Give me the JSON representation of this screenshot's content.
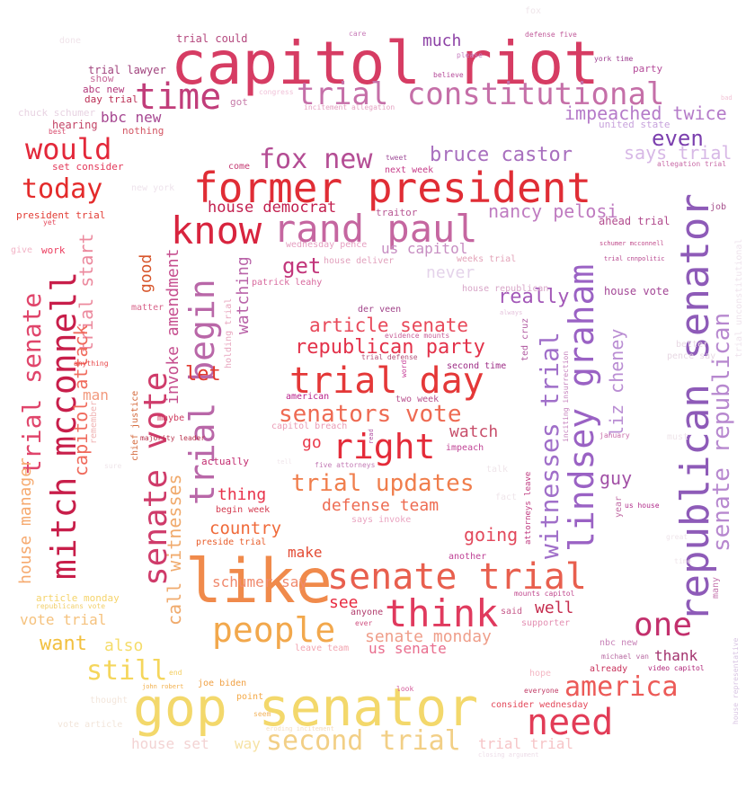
{
  "words": [
    {
      "text": "capitol riot",
      "color": "#d63c63"
    },
    {
      "text": "gop senator",
      "color": "#f3d86b"
    },
    {
      "text": "like",
      "color": "#f08a4b"
    },
    {
      "text": "former president",
      "color": "#e02d35"
    },
    {
      "text": "trial constitutional",
      "color": "#c56fa8"
    },
    {
      "text": "republican senator",
      "color": "#8e5bb8"
    },
    {
      "text": "mitch mcconnell",
      "color": "#c81e4a"
    },
    {
      "text": "senate trial",
      "color": "#e85f4e"
    },
    {
      "text": "rand paul",
      "color": "#c566a0"
    },
    {
      "text": "lindsey graham",
      "color": "#9a62c4"
    },
    {
      "text": "senate vote",
      "color": "#cf3b6a"
    },
    {
      "text": "trial begin",
      "color": "#b967a8"
    },
    {
      "text": "trial day",
      "color": "#e43838"
    },
    {
      "text": "know",
      "color": "#d8243e"
    },
    {
      "text": "time",
      "color": "#c13d7a"
    },
    {
      "text": "think",
      "color": "#e03a5e"
    },
    {
      "text": "people",
      "color": "#f2a84c"
    },
    {
      "text": "need",
      "color": "#e23c57"
    },
    {
      "text": "right",
      "color": "#e42b39"
    },
    {
      "text": "second trial",
      "color": "#f2cf86"
    },
    {
      "text": "would",
      "color": "#e3283a"
    },
    {
      "text": "today",
      "color": "#e42b2b"
    },
    {
      "text": "one",
      "color": "#c3306d"
    },
    {
      "text": "fox new",
      "color": "#b44d94"
    },
    {
      "text": "senate republican",
      "color": "#b788cf"
    },
    {
      "text": "senators vote",
      "color": "#ee6a52"
    },
    {
      "text": "witnesses trial",
      "color": "#a06fc9"
    },
    {
      "text": "trial senate",
      "color": "#e0456b"
    },
    {
      "text": "america",
      "color": "#ec5a57"
    },
    {
      "text": "trial updates",
      "color": "#f07e4c"
    },
    {
      "text": "still",
      "color": "#f5d65c"
    },
    {
      "text": "bruce castor",
      "color": "#a86fbe"
    },
    {
      "text": "republican party",
      "color": "#e3324a"
    },
    {
      "text": "article senate",
      "color": "#e8495a"
    },
    {
      "text": "impeached twice",
      "color": "#b57bc9"
    },
    {
      "text": "nancy pelosi",
      "color": "#bf7bc0"
    },
    {
      "text": "even",
      "color": "#7b3fae"
    },
    {
      "text": "says trial",
      "color": "#d7b8e6"
    },
    {
      "text": "trial start",
      "color": "#ec8a9e"
    },
    {
      "text": "capitol attack",
      "color": "#f06b5d"
    },
    {
      "text": "house manager",
      "color": "#f6a96e"
    },
    {
      "text": "liz cheney",
      "color": "#ba8ed3"
    },
    {
      "text": "get",
      "color": "#c2367b"
    },
    {
      "text": "good",
      "color": "#d7562c"
    },
    {
      "text": "watching",
      "color": "#b963a8"
    },
    {
      "text": "invoke amendment",
      "color": "#c64f8f"
    },
    {
      "text": "call witnesses",
      "color": "#f0aa6c"
    },
    {
      "text": "let",
      "color": "#e13a2f"
    },
    {
      "text": "really",
      "color": "#a358b8"
    },
    {
      "text": "house democrat",
      "color": "#c21f4e"
    },
    {
      "text": "defense team",
      "color": "#ee6c52"
    },
    {
      "text": "senate monday",
      "color": "#ef9e8a"
    },
    {
      "text": "country",
      "color": "#f06a3a"
    },
    {
      "text": "thing",
      "color": "#e8334b"
    },
    {
      "text": "going",
      "color": "#e2495c"
    },
    {
      "text": "watch",
      "color": "#c84f6b"
    },
    {
      "text": "go",
      "color": "#ea3b4c"
    },
    {
      "text": "guy",
      "color": "#a250a6"
    },
    {
      "text": "well",
      "color": "#c52d4e"
    },
    {
      "text": "see",
      "color": "#e82d42"
    },
    {
      "text": "make",
      "color": "#e34b34"
    },
    {
      "text": "us senate",
      "color": "#e96e8e"
    },
    {
      "text": "want",
      "color": "#f2c03f"
    },
    {
      "text": "also",
      "color": "#f5dc6a"
    },
    {
      "text": "vote trial",
      "color": "#f5c27e"
    },
    {
      "text": "thank",
      "color": "#a3336e"
    },
    {
      "text": "man",
      "color": "#f29a7e"
    },
    {
      "text": "much",
      "color": "#8d42a6"
    },
    {
      "text": "bbc new",
      "color": "#a64791"
    },
    {
      "text": "us capitol",
      "color": "#c78ec2"
    },
    {
      "text": "never",
      "color": "#e4d3ea"
    },
    {
      "text": "trial trial",
      "color": "#f6c5c7"
    },
    {
      "text": "house set",
      "color": "#f3d3d3"
    },
    {
      "text": "way",
      "color": "#f6e2a4"
    },
    {
      "text": "house vote",
      "color": "#a34796"
    },
    {
      "text": "ahead trial",
      "color": "#b24c8e"
    },
    {
      "text": "schumer say",
      "color": "#f08a6e"
    },
    {
      "text": "trial could",
      "color": "#b4487e"
    },
    {
      "text": "trial lawyer",
      "color": "#a1447e"
    },
    {
      "text": "abc new",
      "color": "#b2377a"
    },
    {
      "text": "day trial",
      "color": "#bb2f55"
    },
    {
      "text": "show",
      "color": "#c7699a"
    },
    {
      "text": "hearing",
      "color": "#c34466"
    },
    {
      "text": "nothing",
      "color": "#d35563"
    },
    {
      "text": "set consider",
      "color": "#e3395a"
    },
    {
      "text": "president trial",
      "color": "#e23d35"
    },
    {
      "text": "work",
      "color": "#ec3d5f"
    },
    {
      "text": "got",
      "color": "#c67aa8"
    },
    {
      "text": "party",
      "color": "#b54c9a"
    },
    {
      "text": "united state",
      "color": "#c8a3dc"
    },
    {
      "text": "next week",
      "color": "#c63c88"
    },
    {
      "text": "come",
      "color": "#c43b73"
    },
    {
      "text": "traitor",
      "color": "#b85894"
    },
    {
      "text": "chuck schumer",
      "color": "#e8d3e2"
    },
    {
      "text": "new york",
      "color": "#eee3ec"
    },
    {
      "text": "matter",
      "color": "#d8648a"
    },
    {
      "text": "patrick leahy",
      "color": "#d86a9e"
    },
    {
      "text": "house deliver",
      "color": "#e2a2bd"
    },
    {
      "text": "wednesday pence",
      "color": "#e6a0c2"
    },
    {
      "text": "weeks trial",
      "color": "#e3a3b8"
    },
    {
      "text": "house republican",
      "color": "#d8a6c8"
    },
    {
      "text": "der veen",
      "color": "#a1448a"
    },
    {
      "text": "evidence mounts",
      "color": "#c86099"
    },
    {
      "text": "trial defense",
      "color": "#b4537a"
    },
    {
      "text": "second time",
      "color": "#9d2c86"
    },
    {
      "text": "american",
      "color": "#b8228c"
    },
    {
      "text": "two week",
      "color": "#b8518e"
    },
    {
      "text": "capitol breach",
      "color": "#ea9bb5"
    },
    {
      "text": "impeach",
      "color": "#c14596"
    },
    {
      "text": "five attorneys",
      "color": "#c37bb5"
    },
    {
      "text": "maybe",
      "color": "#cf3b5e"
    },
    {
      "text": "majority leader",
      "color": "#b8324c"
    },
    {
      "text": "actually",
      "color": "#c22a6e"
    },
    {
      "text": "begin week",
      "color": "#d43b4f"
    },
    {
      "text": "preside trial",
      "color": "#e85d2b"
    },
    {
      "text": "article monday",
      "color": "#f5d46c"
    },
    {
      "text": "another",
      "color": "#bf4296"
    },
    {
      "text": "says invoke",
      "color": "#eaa6c2"
    },
    {
      "text": "anyone",
      "color": "#b03c6c"
    },
    {
      "text": "mounts capitol",
      "color": "#c14a8f"
    },
    {
      "text": "said",
      "color": "#c65a8a"
    },
    {
      "text": "supporter",
      "color": "#e38fb2"
    },
    {
      "text": "ever",
      "color": "#d05080"
    },
    {
      "text": "leave team",
      "color": "#f2a5b0"
    },
    {
      "text": "joe biden",
      "color": "#f0a043"
    },
    {
      "text": "john robert",
      "color": "#f2b04c"
    },
    {
      "text": "point",
      "color": "#f4a946"
    },
    {
      "text": "seem",
      "color": "#f2b45e"
    },
    {
      "text": "end",
      "color": "#f3ce5e"
    },
    {
      "text": "hope",
      "color": "#f4b8c4"
    },
    {
      "text": "look",
      "color": "#d55c9c"
    },
    {
      "text": "everyone",
      "color": "#c13c66"
    },
    {
      "text": "consider wednesday",
      "color": "#e3485a"
    },
    {
      "text": "already",
      "color": "#c8305a"
    },
    {
      "text": "nbc new",
      "color": "#c883b8"
    },
    {
      "text": "michael van",
      "color": "#b86aa2"
    },
    {
      "text": "video capitol",
      "color": "#b0277a"
    },
    {
      "text": "us house",
      "color": "#b02c8a"
    },
    {
      "text": "year",
      "color": "#c26ea6"
    },
    {
      "text": "many",
      "color": "#c574ad"
    },
    {
      "text": "chief justice",
      "color": "#d46a3d"
    },
    {
      "text": "holding trial",
      "color": "#e8a7bf"
    },
    {
      "text": "remember",
      "color": "#f0b4b4"
    },
    {
      "text": "anything",
      "color": "#e9474a"
    },
    {
      "text": "give",
      "color": "#f2b3c6"
    },
    {
      "text": "yet",
      "color": "#e54a5d"
    },
    {
      "text": "best",
      "color": "#d84a6c"
    },
    {
      "text": "done",
      "color": "#f0e4ea"
    },
    {
      "text": "care",
      "color": "#c87bb8"
    },
    {
      "text": "defense five",
      "color": "#c15a9a"
    },
    {
      "text": "york time",
      "color": "#9e3e90"
    },
    {
      "text": "please",
      "color": "#c781c1"
    },
    {
      "text": "believe",
      "color": "#b64c9a"
    },
    {
      "text": "congress",
      "color": "#f0c2d8"
    },
    {
      "text": "incitement allegation",
      "color": "#e4a3c2"
    },
    {
      "text": "bad",
      "color": "#f2c4d6"
    },
    {
      "text": "tweet",
      "color": "#a0509a"
    },
    {
      "text": "allegation trial",
      "color": "#c86aa6"
    },
    {
      "text": "job",
      "color": "#a64f8c"
    },
    {
      "text": "schumer mcconnell",
      "color": "#c04a8a"
    },
    {
      "text": "trial cnnpolitic",
      "color": "#b7468e"
    },
    {
      "text": "trial unconstitutional",
      "color": "#eee3ec"
    },
    {
      "text": "ted cruz",
      "color": "#b15aa1"
    },
    {
      "text": "word",
      "color": "#c8429a"
    },
    {
      "text": "read",
      "color": "#b04fa2"
    },
    {
      "text": "inciting insurrection",
      "color": "#c682bd"
    },
    {
      "text": "attorneys leave",
      "color": "#be3a80"
    },
    {
      "text": "always",
      "color": "#e5c3dc"
    },
    {
      "text": "january",
      "color": "#c86ba8"
    },
    {
      "text": "better",
      "color": "#e8d9e4"
    },
    {
      "text": "pence say",
      "color": "#e8d9e4"
    },
    {
      "text": "must",
      "color": "#efe5ea"
    },
    {
      "text": "talk",
      "color": "#efe5ea"
    },
    {
      "text": "fact",
      "color": "#efe5ea"
    },
    {
      "text": "sure",
      "color": "#efe5ea"
    },
    {
      "text": "tell",
      "color": "#efe5ea"
    },
    {
      "text": "great",
      "color": "#efe5ea"
    },
    {
      "text": "time",
      "color": "#efe5ea"
    },
    {
      "text": "eroding incitement",
      "color": "#f4dec0"
    },
    {
      "text": "thought",
      "color": "#f3e6dc"
    },
    {
      "text": "vote article",
      "color": "#f2e5da"
    },
    {
      "text": "republicans vote",
      "color": "#f2cf6a"
    },
    {
      "text": "house representative",
      "color": "#d7c3e2"
    },
    {
      "text": "closing argument",
      "color": "#eddde8"
    },
    {
      "text": "fox",
      "color": "#efe5ea"
    }
  ]
}
